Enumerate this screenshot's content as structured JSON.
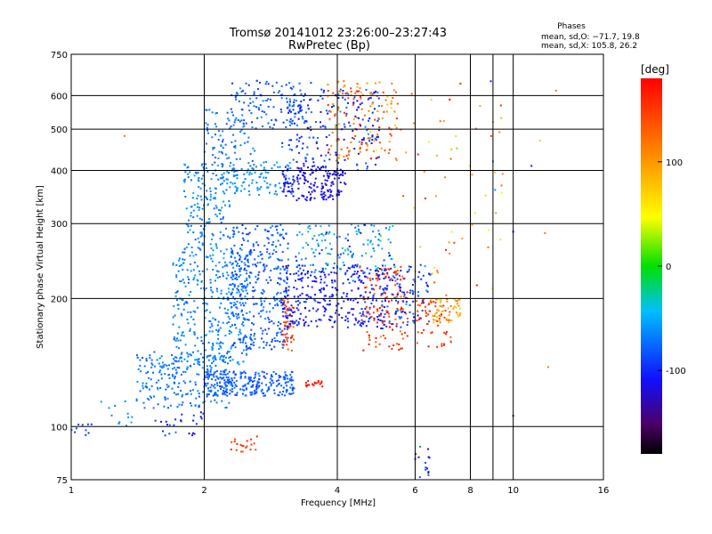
{
  "chart_data": {
    "type": "scatter",
    "title": "Tromsø 20141012 23:26:00–23:27:43",
    "subtitle": "RwPretec (Bp)",
    "xlabel": "Frequency [MHz]",
    "ylabel": "Stationary phase Virtual Height [km]",
    "x_scale": "log",
    "y_scale": "log",
    "xlim": [
      1,
      16
    ],
    "ylim": [
      75,
      750
    ],
    "x_ticks": [
      1,
      2,
      4,
      6,
      8,
      10,
      16
    ],
    "x_minor_gridlines": [
      9
    ],
    "y_ticks": [
      75,
      100,
      200,
      300,
      400,
      500,
      600,
      750
    ],
    "grid": true,
    "phases_info": {
      "heading": "Phases",
      "line_o": "mean, sd,O: −71.7, 19.8",
      "line_x": "mean, sd,X: 105.8, 26.2"
    },
    "colorbar": {
      "label": "[deg]",
      "range": [
        -180,
        180
      ],
      "ticks": [
        100,
        0,
        -100
      ],
      "colormap": "rainbow (black → purple → blue → cyan → green → yellow → orange → red)"
    },
    "clusters": [
      {
        "f": [
          1.0,
          1.12
        ],
        "h": [
          94,
          102
        ],
        "phase": -90,
        "spread": 8,
        "n": 10
      },
      {
        "f": [
          1.15,
          1.4
        ],
        "h": [
          100,
          118
        ],
        "phase": -60,
        "spread": 10,
        "n": 12
      },
      {
        "f": [
          1.4,
          2.3
        ],
        "h": [
          110,
          150
        ],
        "phase": -70,
        "spread": 12,
        "n": 220
      },
      {
        "f": [
          1.55,
          2.0
        ],
        "h": [
          95,
          108
        ],
        "phase": -110,
        "spread": 25,
        "n": 25
      },
      {
        "f": [
          2.0,
          3.2
        ],
        "h": [
          118,
          135
        ],
        "phase": -80,
        "spread": 12,
        "n": 260
      },
      {
        "f": [
          1.7,
          2.5
        ],
        "h": [
          140,
          260
        ],
        "phase": -65,
        "spread": 12,
        "n": 360
      },
      {
        "f": [
          1.8,
          2.3
        ],
        "h": [
          260,
          420
        ],
        "phase": -65,
        "spread": 12,
        "n": 160
      },
      {
        "f": [
          2.0,
          2.6
        ],
        "h": [
          380,
          560
        ],
        "phase": -70,
        "spread": 12,
        "n": 110
      },
      {
        "f": [
          2.3,
          3.2
        ],
        "h": [
          350,
          420
        ],
        "phase": -60,
        "spread": 8,
        "n": 90
      },
      {
        "f": [
          2.3,
          3.5
        ],
        "h": [
          500,
          650
        ],
        "phase": -80,
        "spread": 18,
        "n": 120
      },
      {
        "f": [
          2.3,
          3.1
        ],
        "h": [
          150,
          300
        ],
        "phase": -80,
        "spread": 18,
        "n": 360
      },
      {
        "f": [
          3.0,
          3.2
        ],
        "h": [
          150,
          200
        ],
        "phase": 145,
        "spread": 20,
        "n": 50
      },
      {
        "f": [
          3.0,
          4.2
        ],
        "h": [
          340,
          410
        ],
        "phase": -115,
        "spread": 8,
        "n": 170
      },
      {
        "f": [
          3.0,
          5.0
        ],
        "h": [
          400,
          620
        ],
        "phase": -95,
        "spread": 30,
        "n": 200
      },
      {
        "f": [
          3.8,
          5.5
        ],
        "h": [
          420,
          650
        ],
        "phase": 120,
        "spread": 45,
        "n": 140
      },
      {
        "f": [
          3.0,
          5.2
        ],
        "h": [
          170,
          240
        ],
        "phase": -105,
        "spread": 20,
        "n": 330
      },
      {
        "f": [
          3.2,
          5.4
        ],
        "h": [
          230,
          300
        ],
        "phase": -60,
        "spread": 45,
        "n": 140
      },
      {
        "f": [
          4.5,
          5.8
        ],
        "h": [
          150,
          240
        ],
        "phase": 150,
        "spread": 35,
        "n": 120
      },
      {
        "f": [
          5.0,
          6.5
        ],
        "h": [
          170,
          240
        ],
        "phase": -95,
        "spread": 30,
        "n": 110
      },
      {
        "f": [
          6.0,
          7.3
        ],
        "h": [
          150,
          200
        ],
        "phase": 150,
        "spread": 25,
        "n": 55
      },
      {
        "f": [
          6.5,
          7.6
        ],
        "h": [
          175,
          200
        ],
        "phase": 100,
        "spread": 25,
        "n": 50
      },
      {
        "f": [
          3.4,
          3.7
        ],
        "h": [
          124,
          128
        ],
        "phase": 170,
        "spread": 5,
        "n": 18
      },
      {
        "f": [
          2.3,
          2.7
        ],
        "h": [
          87,
          95
        ],
        "phase": 150,
        "spread": 20,
        "n": 20
      },
      {
        "f": [
          5.5,
          9.5
        ],
        "h": [
          200,
          650
        ],
        "phase": 110,
        "spread": 70,
        "n": 60
      },
      {
        "f": [
          6.0,
          6.5
        ],
        "h": [
          75,
          92
        ],
        "phase": -100,
        "spread": 40,
        "n": 15
      }
    ],
    "sparse_points": [
      {
        "f": 1.32,
        "h": 482,
        "phase": 120
      },
      {
        "f": 7.6,
        "h": 640,
        "phase": 165
      },
      {
        "f": 8.9,
        "h": 648,
        "phase": -100
      },
      {
        "f": 9.1,
        "h": 360,
        "phase": -60
      },
      {
        "f": 9.0,
        "h": 420,
        "phase": -60
      },
      {
        "f": 11.0,
        "h": 410,
        "phase": -110
      },
      {
        "f": 12.5,
        "h": 616,
        "phase": 120
      },
      {
        "f": 11.8,
        "h": 285,
        "phase": 120
      },
      {
        "f": 12.0,
        "h": 138,
        "phase": 110
      },
      {
        "f": 10.0,
        "h": 106,
        "phase": -130
      },
      {
        "f": 10.0,
        "h": 287,
        "phase": -110
      },
      {
        "f": 9.0,
        "h": 520,
        "phase": 20
      },
      {
        "f": 11.5,
        "h": 470,
        "phase": 70
      }
    ]
  }
}
